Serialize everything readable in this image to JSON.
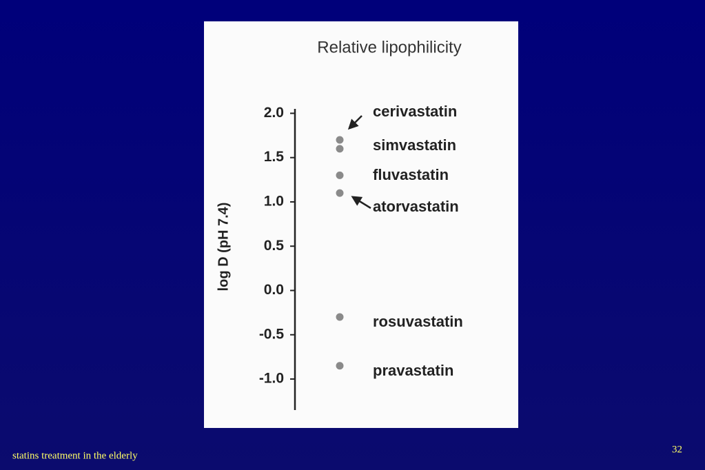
{
  "chart_data": {
    "type": "scatter",
    "title": "Relative lipophilicity",
    "y_label": "log D (pH 7.4)",
    "categories": [
      "cerivastatin",
      "simvastatin",
      "fluvastatin",
      "atorvastatin",
      "rosuvastatin",
      "pravastatin"
    ],
    "values": [
      1.7,
      1.6,
      1.3,
      1.1,
      -0.3,
      -0.85
    ],
    "color": "#8a8a8a",
    "ylim": [
      -1.35,
      2.05
    ],
    "yticks": [
      {
        "value": 2,
        "label": "2.0"
      },
      1.5,
      {
        "value": 1,
        "label": "1.0"
      },
      0.5,
      {
        "value": 0,
        "label": "0.0"
      },
      -0.5,
      {
        "value": -1,
        "label": "-1.0"
      }
    ]
  },
  "footer": {
    "text": "statins treatment in the elderly",
    "page": "32"
  }
}
